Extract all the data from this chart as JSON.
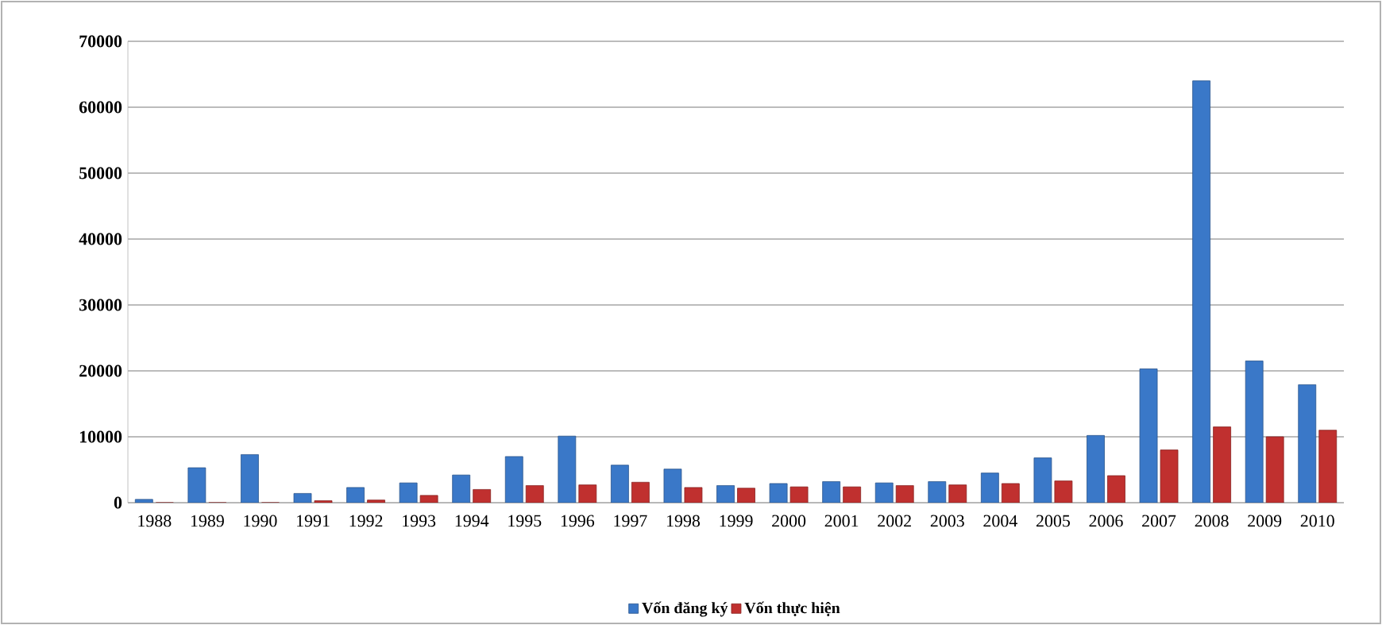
{
  "chart_data": {
    "type": "bar",
    "categories": [
      "1988",
      "1989",
      "1990",
      "1991",
      "1992",
      "1993",
      "1994",
      "1995",
      "1996",
      "1997",
      "1998",
      "1999",
      "2000",
      "2001",
      "2002",
      "2003",
      "2004",
      "2005",
      "2006",
      "2007",
      "2008",
      "2009",
      "2010"
    ],
    "series": [
      {
        "name": "Vốn đăng ký",
        "color": "#3a78c8",
        "values": [
          500,
          5300,
          7300,
          1400,
          2300,
          3000,
          4200,
          7000,
          10100,
          5700,
          5100,
          2600,
          2900,
          3200,
          3000,
          3200,
          4500,
          6800,
          10200,
          20300,
          64000,
          21500,
          17900
        ]
      },
      {
        "name": "Vốn thực hiện",
        "color": "#c0302f",
        "values": [
          0,
          0,
          0,
          300,
          400,
          1100,
          2000,
          2600,
          2700,
          3100,
          2300,
          2200,
          2400,
          2400,
          2600,
          2700,
          2900,
          3300,
          4100,
          8000,
          11500,
          10000,
          11000
        ]
      }
    ],
    "ylim": [
      0,
      70000
    ],
    "yticks": [
      0,
      10000,
      20000,
      30000,
      40000,
      50000,
      60000,
      70000
    ],
    "grid": "y",
    "legend": "bottom"
  }
}
